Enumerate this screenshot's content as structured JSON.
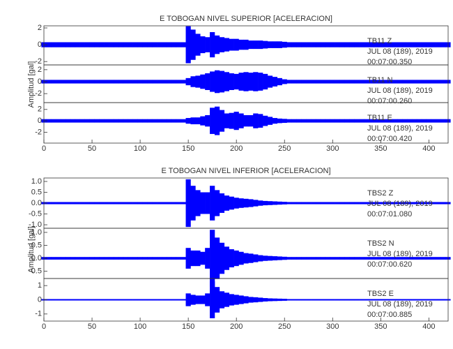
{
  "chart_data": [
    {
      "type": "seismogram",
      "title": "E TOBOGAN NIVEL SUPERIOR [ACELERACION]",
      "ylabel": "Amplitud [gal]",
      "color": "#0000ff",
      "xlim": [
        0,
        420
      ],
      "xticks": [
        0,
        50,
        100,
        150,
        200,
        250,
        300,
        350,
        400
      ],
      "x": [
        0,
        5,
        10,
        15,
        20,
        25,
        30,
        35,
        40,
        45,
        50,
        55,
        60,
        65,
        70,
        75,
        80,
        85,
        90,
        95,
        100,
        105,
        110,
        115,
        120,
        125,
        130,
        135,
        140,
        145,
        150,
        155,
        160,
        165,
        170,
        175,
        180,
        185,
        190,
        195,
        200,
        205,
        210,
        215,
        220,
        225,
        230,
        235,
        240,
        245,
        250,
        255,
        260,
        265,
        270,
        275,
        280,
        285,
        290,
        295,
        300,
        305,
        310,
        315,
        320,
        325,
        330,
        335,
        340,
        345,
        350,
        355,
        360,
        365,
        370,
        375,
        380,
        385,
        390,
        395,
        400,
        405,
        410,
        415,
        420
      ],
      "panels": [
        {
          "labels": [
            "TB11  Z",
            "JUL 08 (189), 2019",
            "00:07:00.350"
          ],
          "ylim": [
            -2.4,
            2.25
          ],
          "yticks": [
            2,
            0,
            -2
          ],
          "values": [
            0.3,
            0.3,
            0.3,
            0.3,
            0.3,
            0.3,
            0.3,
            0.3,
            0.3,
            0.3,
            0.3,
            0.3,
            0.3,
            0.3,
            0.3,
            0.3,
            0.3,
            0.3,
            0.3,
            0.3,
            0.3,
            0.3,
            0.3,
            0.3,
            0.3,
            0.3,
            0.3,
            0.3,
            0.3,
            0.3,
            2.2,
            1.8,
            1.3,
            1.0,
            0.9,
            1.5,
            1.1,
            0.9,
            0.8,
            0.7,
            0.7,
            0.6,
            0.6,
            0.5,
            0.5,
            0.5,
            0.45,
            0.4,
            0.4,
            0.4,
            0.35,
            0.3,
            0.3,
            0.3,
            0.3,
            0.3,
            0.3,
            0.3,
            0.3,
            0.3,
            0.3,
            0.3,
            0.3,
            0.3,
            0.3,
            0.3,
            0.3,
            0.3,
            0.3,
            0.3,
            0.3,
            0.3,
            0.3,
            0.3,
            0.3,
            0.3,
            0.3,
            0.3,
            0.3,
            0.3,
            0.3,
            0.3,
            0.3,
            0.3,
            0.3
          ]
        },
        {
          "labels": [
            "TB11  N",
            "JUL 08 (189), 2019",
            "00:07:00.260"
          ],
          "ylim": [
            -3.5,
            2.8
          ],
          "yticks": [
            2,
            0,
            -2
          ],
          "values": [
            0.3,
            0.3,
            0.3,
            0.3,
            0.3,
            0.3,
            0.3,
            0.3,
            0.3,
            0.3,
            0.3,
            0.3,
            0.3,
            0.3,
            0.3,
            0.3,
            0.3,
            0.3,
            0.3,
            0.3,
            0.3,
            0.3,
            0.3,
            0.3,
            0.3,
            0.3,
            0.3,
            0.3,
            0.3,
            0.3,
            0.6,
            0.9,
            1.0,
            1.2,
            1.4,
            1.7,
            1.9,
            1.8,
            1.6,
            1.4,
            1.3,
            1.5,
            1.6,
            1.5,
            1.6,
            1.5,
            1.3,
            1.0,
            0.8,
            0.6,
            0.4,
            0.3,
            0.3,
            0.3,
            0.3,
            0.3,
            0.3,
            0.3,
            0.3,
            0.3,
            0.3,
            0.3,
            0.3,
            0.3,
            0.3,
            0.3,
            0.3,
            0.3,
            0.3,
            0.3,
            0.3,
            0.3,
            0.3,
            0.3,
            0.3,
            0.3,
            0.3,
            0.3,
            0.3,
            0.3,
            0.3,
            0.3,
            0.3,
            0.3,
            0.3
          ]
        },
        {
          "labels": [
            "TB11  E",
            "JUL 08 (189), 2019",
            "00:07:00.420"
          ],
          "ylim": [
            -3.9,
            3.2
          ],
          "yticks": [
            2,
            0,
            -2
          ],
          "values": [
            0.3,
            0.3,
            0.3,
            0.3,
            0.3,
            0.3,
            0.3,
            0.3,
            0.3,
            0.3,
            0.3,
            0.3,
            0.3,
            0.3,
            0.3,
            0.3,
            0.3,
            0.3,
            0.3,
            0.3,
            0.3,
            0.3,
            0.3,
            0.3,
            0.3,
            0.3,
            0.3,
            0.3,
            0.3,
            0.3,
            0.5,
            0.6,
            0.6,
            0.8,
            1.0,
            2.3,
            2.5,
            1.9,
            1.3,
            1.4,
            1.6,
            1.3,
            1.0,
            1.0,
            1.3,
            1.2,
            0.9,
            0.7,
            0.5,
            0.4,
            0.35,
            0.3,
            0.3,
            0.3,
            0.3,
            0.3,
            0.3,
            0.3,
            0.3,
            0.3,
            0.3,
            0.3,
            0.3,
            0.3,
            0.3,
            0.3,
            0.3,
            0.3,
            0.3,
            0.3,
            0.3,
            0.3,
            0.3,
            0.3,
            0.3,
            0.3,
            0.3,
            0.3,
            0.3,
            0.3,
            0.3,
            0.3,
            0.3,
            0.3,
            0.3
          ]
        }
      ]
    },
    {
      "type": "seismogram",
      "title": "E TOBOGAN NIVEL INFERIOR [ACELERACION]",
      "ylabel": "Amplitud [gal]",
      "color": "#0000ff",
      "xlim": [
        0,
        420
      ],
      "xticks": [
        0,
        50,
        100,
        150,
        200,
        250,
        300,
        350,
        400
      ],
      "x": [
        0,
        5,
        10,
        15,
        20,
        25,
        30,
        35,
        40,
        45,
        50,
        55,
        60,
        65,
        70,
        75,
        80,
        85,
        90,
        95,
        100,
        105,
        110,
        115,
        120,
        125,
        130,
        135,
        140,
        145,
        150,
        155,
        160,
        165,
        170,
        175,
        180,
        185,
        190,
        195,
        200,
        205,
        210,
        215,
        220,
        225,
        230,
        235,
        240,
        245,
        250,
        255,
        260,
        265,
        270,
        275,
        280,
        285,
        290,
        295,
        300,
        305,
        310,
        315,
        320,
        325,
        330,
        335,
        340,
        345,
        350,
        355,
        360,
        365,
        370,
        375,
        380,
        385,
        390,
        395,
        400,
        405,
        410,
        415,
        420
      ],
      "panels": [
        {
          "labels": [
            "TBS2  Z",
            "JUL 08 (189), 2019",
            "00:07:01.080"
          ],
          "ylim": [
            -1.16,
            1.16
          ],
          "yticks": [
            {
              "value": 1,
              "label": "1.0"
            },
            0.5,
            {
              "value": 0,
              "label": "0.0"
            },
            -0.5,
            {
              "value": -1,
              "label": "-1.0"
            }
          ],
          "values": [
            0.05,
            0.05,
            0.05,
            0.05,
            0.05,
            0.05,
            0.05,
            0.05,
            0.05,
            0.05,
            0.05,
            0.05,
            0.05,
            0.05,
            0.05,
            0.05,
            0.05,
            0.05,
            0.05,
            0.05,
            0.05,
            0.05,
            0.05,
            0.05,
            0.05,
            0.05,
            0.05,
            0.05,
            0.05,
            0.05,
            1.1,
            0.8,
            0.6,
            0.5,
            0.5,
            0.8,
            0.6,
            0.45,
            0.35,
            0.3,
            0.25,
            0.22,
            0.2,
            0.18,
            0.15,
            0.12,
            0.1,
            0.09,
            0.08,
            0.07,
            0.06,
            0.05,
            0.05,
            0.05,
            0.05,
            0.05,
            0.05,
            0.05,
            0.05,
            0.05,
            0.05,
            0.05,
            0.05,
            0.05,
            0.05,
            0.05,
            0.05,
            0.05,
            0.05,
            0.05,
            0.05,
            0.05,
            0.05,
            0.05,
            0.05,
            0.05,
            0.05,
            0.05,
            0.05,
            0.05,
            0.05,
            0.05,
            0.05,
            0.05,
            0.05
          ]
        },
        {
          "labels": [
            "TBS2  N",
            "JUL 08 (189), 2019",
            "00:07:00.620"
          ],
          "ylim": [
            -0.78,
            1.16
          ],
          "yticks": [
            {
              "value": 1,
              "label": "1.0"
            },
            0.5,
            {
              "value": 0,
              "label": "0.0"
            },
            -0.5
          ],
          "values": [
            0.05,
            0.05,
            0.05,
            0.05,
            0.05,
            0.05,
            0.05,
            0.05,
            0.05,
            0.05,
            0.05,
            0.05,
            0.05,
            0.05,
            0.05,
            0.05,
            0.05,
            0.05,
            0.05,
            0.05,
            0.05,
            0.05,
            0.05,
            0.05,
            0.05,
            0.05,
            0.05,
            0.05,
            0.05,
            0.05,
            0.4,
            0.3,
            0.3,
            0.25,
            0.4,
            1.1,
            0.8,
            0.6,
            0.45,
            0.35,
            0.3,
            0.25,
            0.2,
            0.18,
            0.15,
            0.12,
            0.1,
            0.09,
            0.08,
            0.07,
            0.06,
            0.05,
            0.05,
            0.05,
            0.05,
            0.05,
            0.05,
            0.05,
            0.05,
            0.05,
            0.05,
            0.05,
            0.05,
            0.05,
            0.05,
            0.05,
            0.05,
            0.05,
            0.05,
            0.05,
            0.05,
            0.05,
            0.05,
            0.05,
            0.05,
            0.05,
            0.05,
            0.05,
            0.05,
            0.05,
            0.05,
            0.05,
            0.05,
            0.05,
            0.05
          ]
        },
        {
          "labels": [
            "TBS2  E",
            "JUL 08 (189), 2019",
            "00:07:00.885"
          ],
          "ylim": [
            -1.5,
            1.5
          ],
          "yticks": [
            1,
            0,
            -1
          ],
          "values": [
            0.05,
            0.05,
            0.05,
            0.05,
            0.05,
            0.05,
            0.05,
            0.05,
            0.05,
            0.05,
            0.05,
            0.05,
            0.05,
            0.05,
            0.05,
            0.05,
            0.05,
            0.05,
            0.05,
            0.05,
            0.05,
            0.05,
            0.05,
            0.05,
            0.05,
            0.05,
            0.05,
            0.05,
            0.05,
            0.05,
            0.45,
            0.35,
            0.3,
            0.3,
            0.45,
            1.3,
            0.9,
            0.6,
            0.5,
            0.4,
            0.35,
            0.3,
            0.25,
            0.2,
            0.18,
            0.15,
            0.12,
            0.1,
            0.09,
            0.08,
            0.07,
            0.05,
            0.05,
            0.05,
            0.05,
            0.05,
            0.05,
            0.05,
            0.05,
            0.05,
            0.05,
            0.05,
            0.05,
            0.05,
            0.05,
            0.05,
            0.05,
            0.05,
            0.05,
            0.05,
            0.05,
            0.05,
            0.05,
            0.05,
            0.05,
            0.05,
            0.05,
            0.05,
            0.05,
            0.05,
            0.05,
            0.05,
            0.05,
            0.05,
            0.05
          ]
        }
      ]
    }
  ]
}
